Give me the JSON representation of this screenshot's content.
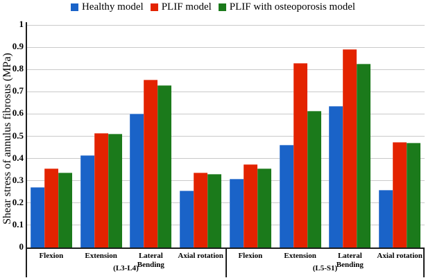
{
  "legend": {
    "items": [
      {
        "label": "Healthy model",
        "color": "#1A63C8"
      },
      {
        "label": "PLIF model",
        "color": "#E32300"
      },
      {
        "label": "PLIF with osteoporosis model",
        "color": "#1B7A1B"
      }
    ]
  },
  "chart_data": {
    "type": "bar",
    "title": "",
    "ylabel": "Shear stress of annulus fibrosus (MPa)",
    "xlabel": "",
    "ylim": [
      0,
      1
    ],
    "ytick_step": 0.1,
    "ytick_labels": [
      "0",
      "0.1",
      "0.2",
      "0.3",
      "0.4",
      "0.5",
      "0.6",
      "0.7",
      "0.8",
      "0.9",
      "1"
    ],
    "grid": true,
    "legend_position": "top",
    "series_names": [
      "Healthy model",
      "PLIF model",
      "PLIF with osteoporosis model"
    ],
    "series_colors": [
      "#1A63C8",
      "#E32300",
      "#1B7A1B"
    ],
    "gridline_color": "#c9c9c9",
    "axis_color": "#1c1c1c",
    "groups": [
      {
        "label": "(L3-L4)",
        "categories": [
          "Flexion",
          "Extension",
          "Lateral Bending",
          "Axial rotation"
        ],
        "series": [
          {
            "name": "Healthy model",
            "values": [
              0.27,
              0.415,
              0.6,
              0.255
            ]
          },
          {
            "name": "PLIF model",
            "values": [
              0.355,
              0.515,
              0.755,
              0.335
            ]
          },
          {
            "name": "PLIF with osteoporosis model",
            "values": [
              0.335,
              0.51,
              0.73,
              0.33
            ]
          }
        ]
      },
      {
        "label": "(L5-S1)",
        "categories": [
          "Flexion",
          "Extension",
          "Lateral Bending",
          "Axial rotation"
        ],
        "series": [
          {
            "name": "Healthy model",
            "values": [
              0.31,
              0.46,
              0.635,
              0.26
            ]
          },
          {
            "name": "PLIF model",
            "values": [
              0.375,
              0.83,
              0.89,
              0.475
            ]
          },
          {
            "name": "PLIF with osteoporosis model",
            "values": [
              0.355,
              0.615,
              0.825,
              0.47
            ]
          }
        ]
      }
    ]
  }
}
